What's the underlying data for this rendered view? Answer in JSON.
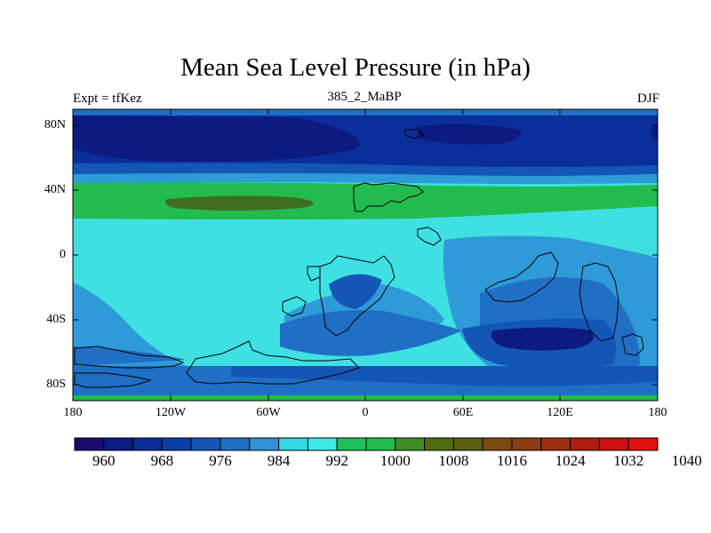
{
  "title": "Mean Sea Level Pressure (in hPa)",
  "subtitle_left": "Expt = tfKez",
  "subtitle_center": "385_2_MaBP",
  "subtitle_right": "DJF",
  "lat_ticks": [
    "80N",
    "40N",
    "0",
    "40S",
    "80S"
  ],
  "lon_ticks": [
    "180",
    "120W",
    "60W",
    "0",
    "60E",
    "120E",
    "180"
  ],
  "colorbar": {
    "colors": [
      "#1b0a6e",
      "#0b1c86",
      "#0a2d96",
      "#0b3ea6",
      "#1456b6",
      "#1f6fc4",
      "#2e94d6",
      "#35d8e4",
      "#3fe9e4",
      "#22c05a",
      "#22bb4e",
      "#3f8c22",
      "#516c10",
      "#5b5f10",
      "#7a4b10",
      "#8b3c10",
      "#9b2e10",
      "#ad1e0f",
      "#cc1010",
      "#e31010"
    ],
    "labels": [
      "960",
      "968",
      "976",
      "984",
      "992",
      "1000",
      "1008",
      "1016",
      "1024",
      "1032",
      "1040"
    ]
  },
  "map_colors": {
    "deep_low": "#0d1a7f",
    "low": "#0a2f9c",
    "mid_low": "#1456b6",
    "moderate": "#1f6fc4",
    "near_normal": "#2e9ad8",
    "normal": "#3fe0e2",
    "high": "#22bb4e",
    "very_high": "#3f6e21",
    "polar_band": "#1fa0a0"
  }
}
